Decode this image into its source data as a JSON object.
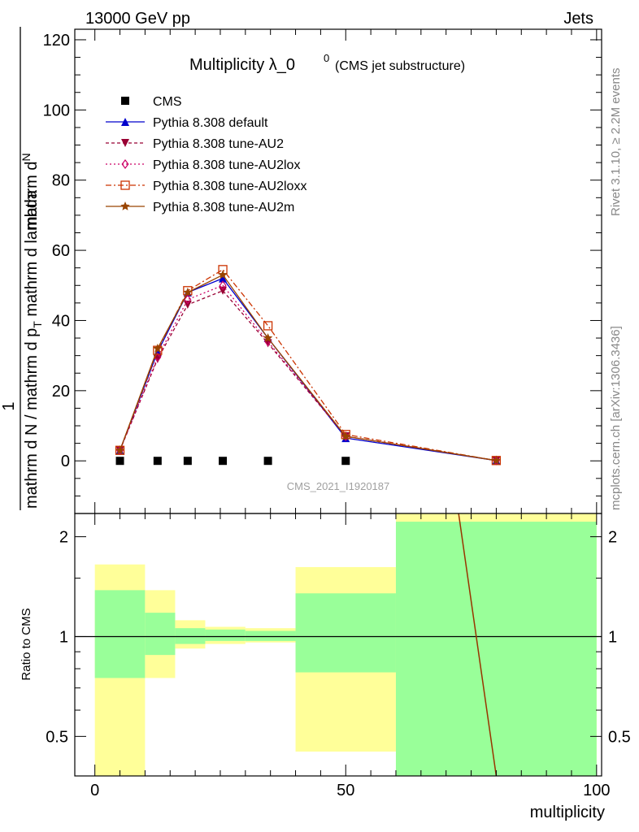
{
  "header": {
    "left": "13000 GeV pp",
    "right": "Jets"
  },
  "side_labels": {
    "rivet": "Rivet 3.1.10, ≥ 2.2M events",
    "mcplots": "mcplots.cern.ch [arXiv:1306.3436]"
  },
  "watermark": "CMS_2021_I1920187",
  "chart_data": [
    {
      "type": "line",
      "title": "Multiplicity λ_0",
      "title_sup": "0",
      "subtitle": "(CMS jet substructure)",
      "ylabel_lines": [
        "mathrm d N / mathrm d p_T mathrm d lambda ... ",
        "1"
      ],
      "ylabel_numerator": "mathrm d",
      "ylabel_numerator2": "N",
      "ylabel_denominator": "mathrm d p",
      "ylabel_denominator_sub": "T",
      "ylabel_denominator2": " mathrm d lambda",
      "ylabel_left_num": "1",
      "ylabel_left_den": "mathrm d N / mathrm d p",
      "ylabel_left_den_sub": "T",
      "ylabel_left_den2": "mathrm d p",
      "ylabel_left_den_sub2": "T",
      "ylabel_left_den3": "mathrm d lambda",
      "xlim": [
        -4,
        101
      ],
      "ylim": [
        -15,
        123
      ],
      "yticks": [
        0,
        20,
        40,
        60,
        80,
        100,
        120
      ],
      "ytick_labels": [
        "0",
        "20",
        "40",
        "60",
        "80",
        "100",
        "120"
      ],
      "legend_position": "top-left",
      "series": [
        {
          "name": "CMS",
          "color": "#000000",
          "marker": "square",
          "dash": "",
          "x": [
            5,
            12.5,
            18.5,
            25.5,
            34.5,
            50
          ],
          "y": [
            0,
            0,
            0,
            0,
            0,
            0
          ]
        },
        {
          "name": "Pythia 8.308 default",
          "color": "#0000cc",
          "marker": "triangle",
          "dash": "",
          "x": [
            5,
            12.5,
            18.5,
            25.5,
            34.5,
            50,
            80
          ],
          "y": [
            3.0,
            31.0,
            48.0,
            52.0,
            35.0,
            6.5,
            0.1
          ]
        },
        {
          "name": "Pythia 8.308 tune-AU2",
          "color": "#990033",
          "marker": "triangle-down",
          "dash": "4,3",
          "x": [
            5,
            12.5,
            18.5,
            25.5,
            34.5,
            50,
            80
          ],
          "y": [
            3.0,
            29.0,
            44.5,
            48.5,
            33.5,
            7.0,
            0.1
          ]
        },
        {
          "name": "Pythia 8.308 tune-AU2lox",
          "color": "#cc0066",
          "marker": "diamond",
          "dash": "2,3",
          "x": [
            5,
            12.5,
            18.5,
            25.5,
            34.5,
            50,
            80
          ],
          "y": [
            3.0,
            29.5,
            46.0,
            50.0,
            34.0,
            7.0,
            0.1
          ]
        },
        {
          "name": "Pythia 8.308 tune-AU2loxx",
          "color": "#cc3300",
          "marker": "square-open",
          "dash": "7,3,2,3",
          "x": [
            5,
            12.5,
            18.5,
            25.5,
            34.5,
            50,
            80
          ],
          "y": [
            3.0,
            31.5,
            48.5,
            54.5,
            38.5,
            7.5,
            0.1
          ]
        },
        {
          "name": "Pythia 8.308 tune-AU2m",
          "color": "#994400",
          "marker": "star",
          "dash": "",
          "x": [
            5,
            12.5,
            18.5,
            25.5,
            34.5,
            50,
            80
          ],
          "y": [
            3.0,
            32.0,
            48.0,
            53.0,
            35.0,
            7.0,
            0.1
          ]
        }
      ]
    },
    {
      "type": "area",
      "ylabel": "Ratio to CMS",
      "xlabel": "multiplicity",
      "xlim": [
        -4,
        101
      ],
      "ylim": [
        0.38,
        2.35
      ],
      "log_y": true,
      "xticks": [
        0,
        50,
        100
      ],
      "xtick_labels": [
        "0",
        "50",
        "100"
      ],
      "yticks": [
        0.5,
        1,
        2
      ],
      "ytick_labels": [
        "0.5",
        "1",
        "2"
      ],
      "bins": [
        {
          "lo": 0,
          "hi": 10,
          "yellow": [
            0.38,
            1.65
          ],
          "green": [
            0.75,
            1.38
          ]
        },
        {
          "lo": 10,
          "hi": 16,
          "yellow": [
            0.75,
            1.38
          ],
          "green": [
            0.88,
            1.18
          ]
        },
        {
          "lo": 16,
          "hi": 22,
          "yellow": [
            0.92,
            1.12
          ],
          "green": [
            0.95,
            1.06
          ]
        },
        {
          "lo": 22,
          "hi": 30,
          "yellow": [
            0.95,
            1.07
          ],
          "green": [
            0.97,
            1.05
          ]
        },
        {
          "lo": 30,
          "hi": 40,
          "yellow": [
            0.96,
            1.06
          ],
          "green": [
            0.97,
            1.04
          ]
        },
        {
          "lo": 40,
          "hi": 60,
          "yellow": [
            0.45,
            1.62
          ],
          "green": [
            0.78,
            1.35
          ]
        },
        {
          "lo": 60,
          "hi": 100,
          "yellow": [
            0.38,
            2.35
          ],
          "green": [
            0.38,
            2.22
          ]
        }
      ],
      "ratio_line": {
        "color": "#993300",
        "x": [
          72.5,
          80
        ],
        "y": [
          2.35,
          0.38
        ]
      }
    }
  ]
}
